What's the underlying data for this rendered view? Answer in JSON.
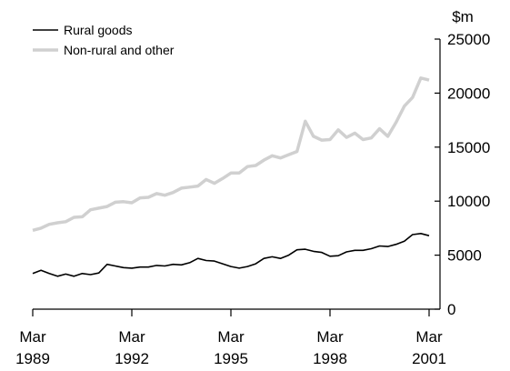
{
  "chart_data": {
    "type": "line",
    "title": "",
    "xlabel": "",
    "ylabel": "$m",
    "ylim": [
      0,
      25000
    ],
    "y_ticks": [
      0,
      5000,
      10000,
      15000,
      20000,
      25000
    ],
    "y_axis_side": "right",
    "grid": false,
    "legend_position": "top-left",
    "x_ticks": [
      {
        "value": 1989.17,
        "month": "Mar",
        "year": "1989"
      },
      {
        "value": 1992.17,
        "month": "Mar",
        "year": "1992"
      },
      {
        "value": 1995.17,
        "month": "Mar",
        "year": "1995"
      },
      {
        "value": 1998.17,
        "month": "Mar",
        "year": "1998"
      },
      {
        "value": 2001.17,
        "month": "Mar",
        "year": "2001"
      }
    ],
    "xlim": [
      1989.17,
      2001.17
    ],
    "series": [
      {
        "name": "Rural goods",
        "color": "#000000",
        "x": [
          1989.17,
          1989.42,
          1989.67,
          1989.92,
          1990.17,
          1990.42,
          1990.67,
          1990.92,
          1991.17,
          1991.42,
          1991.67,
          1991.92,
          1992.17,
          1992.42,
          1992.67,
          1992.92,
          1993.17,
          1993.42,
          1993.67,
          1993.92,
          1994.17,
          1994.42,
          1994.67,
          1994.92,
          1995.17,
          1995.42,
          1995.67,
          1995.92,
          1996.17,
          1996.42,
          1996.67,
          1996.92,
          1997.17,
          1997.42,
          1997.67,
          1997.92,
          1998.17,
          1998.42,
          1998.67,
          1998.92,
          1999.17,
          1999.42,
          1999.67,
          1999.92,
          2000.17,
          2000.42,
          2000.67,
          2000.92,
          2001.17
        ],
        "values": [
          3300,
          3600,
          3300,
          3050,
          3250,
          3050,
          3300,
          3200,
          3350,
          4150,
          4000,
          3850,
          3800,
          3900,
          3900,
          4050,
          4000,
          4150,
          4100,
          4300,
          4700,
          4500,
          4450,
          4200,
          3950,
          3800,
          3950,
          4200,
          4700,
          4850,
          4700,
          5000,
          5500,
          5550,
          5350,
          5250,
          4900,
          4950,
          5300,
          5450,
          5450,
          5600,
          5850,
          5800,
          6000,
          6300,
          6900,
          7000,
          6800
        ]
      },
      {
        "name": "Non-rural and other",
        "color": "#d0d0d0",
        "x": [
          1989.17,
          1989.42,
          1989.67,
          1989.92,
          1990.17,
          1990.42,
          1990.67,
          1990.92,
          1991.17,
          1991.42,
          1991.67,
          1991.92,
          1992.17,
          1992.42,
          1992.67,
          1992.92,
          1993.17,
          1993.42,
          1993.67,
          1993.92,
          1994.17,
          1994.42,
          1994.67,
          1994.92,
          1995.17,
          1995.42,
          1995.67,
          1995.92,
          1996.17,
          1996.42,
          1996.67,
          1996.92,
          1997.17,
          1997.42,
          1997.67,
          1997.92,
          1998.17,
          1998.42,
          1998.67,
          1998.92,
          1999.17,
          1999.42,
          1999.67,
          1999.92,
          2000.17,
          2000.42,
          2000.67,
          2000.92,
          2001.17
        ],
        "values": [
          7300,
          7500,
          7850,
          8000,
          8100,
          8500,
          8550,
          9200,
          9350,
          9500,
          9900,
          9950,
          9850,
          10300,
          10350,
          10700,
          10550,
          10800,
          11200,
          11300,
          11400,
          12000,
          11650,
          12100,
          12600,
          12600,
          13200,
          13300,
          13800,
          14200,
          14000,
          14300,
          14600,
          17400,
          16000,
          15650,
          15700,
          16600,
          15900,
          16300,
          15700,
          15850,
          16700,
          16000,
          17300,
          18800,
          19600,
          21400,
          21200
        ]
      }
    ]
  }
}
